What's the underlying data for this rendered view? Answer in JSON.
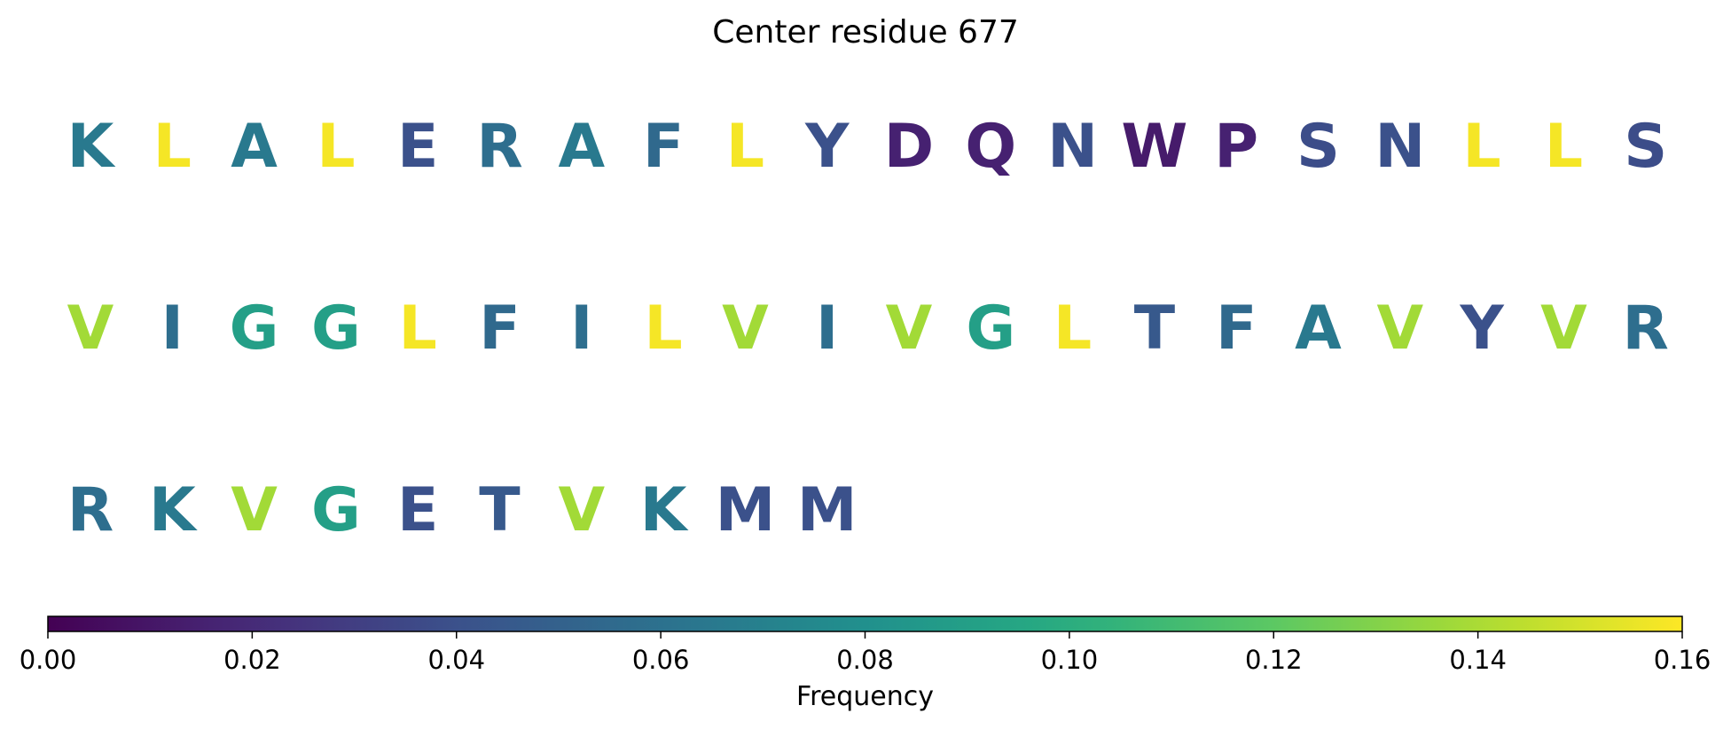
{
  "chart_data": {
    "type": "sequence_heatmap",
    "title": "Center residue 677",
    "sequence": [
      {
        "residue": "K",
        "frequency": 0.065
      },
      {
        "residue": "L",
        "frequency": 0.158
      },
      {
        "residue": "A",
        "frequency": 0.065
      },
      {
        "residue": "L",
        "frequency": 0.158
      },
      {
        "residue": "E",
        "frequency": 0.04
      },
      {
        "residue": "R",
        "frequency": 0.058
      },
      {
        "residue": "A",
        "frequency": 0.065
      },
      {
        "residue": "F",
        "frequency": 0.055
      },
      {
        "residue": "L",
        "frequency": 0.158
      },
      {
        "residue": "Y",
        "frequency": 0.04
      },
      {
        "residue": "D",
        "frequency": 0.015
      },
      {
        "residue": "Q",
        "frequency": 0.015
      },
      {
        "residue": "N",
        "frequency": 0.04
      },
      {
        "residue": "W",
        "frequency": 0.012
      },
      {
        "residue": "P",
        "frequency": 0.015
      },
      {
        "residue": "S",
        "frequency": 0.038
      },
      {
        "residue": "N",
        "frequency": 0.04
      },
      {
        "residue": "L",
        "frequency": 0.158
      },
      {
        "residue": "L",
        "frequency": 0.158
      },
      {
        "residue": "S",
        "frequency": 0.038
      },
      {
        "residue": "V",
        "frequency": 0.138
      },
      {
        "residue": "I",
        "frequency": 0.058
      },
      {
        "residue": "G",
        "frequency": 0.09
      },
      {
        "residue": "G",
        "frequency": 0.09
      },
      {
        "residue": "L",
        "frequency": 0.158
      },
      {
        "residue": "F",
        "frequency": 0.055
      },
      {
        "residue": "I",
        "frequency": 0.058
      },
      {
        "residue": "L",
        "frequency": 0.158
      },
      {
        "residue": "V",
        "frequency": 0.138
      },
      {
        "residue": "I",
        "frequency": 0.058
      },
      {
        "residue": "V",
        "frequency": 0.138
      },
      {
        "residue": "G",
        "frequency": 0.09
      },
      {
        "residue": "L",
        "frequency": 0.158
      },
      {
        "residue": "T",
        "frequency": 0.045
      },
      {
        "residue": "F",
        "frequency": 0.055
      },
      {
        "residue": "A",
        "frequency": 0.065
      },
      {
        "residue": "V",
        "frequency": 0.138
      },
      {
        "residue": "Y",
        "frequency": 0.04
      },
      {
        "residue": "V",
        "frequency": 0.138
      },
      {
        "residue": "R",
        "frequency": 0.058
      },
      {
        "residue": "R",
        "frequency": 0.058
      },
      {
        "residue": "K",
        "frequency": 0.065
      },
      {
        "residue": "V",
        "frequency": 0.138
      },
      {
        "residue": "G",
        "frequency": 0.09
      },
      {
        "residue": "E",
        "frequency": 0.04
      },
      {
        "residue": "T",
        "frequency": 0.045
      },
      {
        "residue": "V",
        "frequency": 0.138
      },
      {
        "residue": "K",
        "frequency": 0.065
      },
      {
        "residue": "M",
        "frequency": 0.04
      },
      {
        "residue": "M",
        "frequency": 0.04
      }
    ],
    "residues_per_row": 20,
    "colormap": "viridis",
    "colorbar": {
      "label": "Frequency",
      "range": [
        0.0,
        0.16
      ],
      "ticks": [
        0.0,
        0.02,
        0.04,
        0.06,
        0.08,
        0.1,
        0.12,
        0.14,
        0.16
      ],
      "tick_labels": [
        "0.00",
        "0.02",
        "0.04",
        "0.06",
        "0.08",
        "0.10",
        "0.12",
        "0.14",
        "0.16"
      ],
      "orientation": "horizontal",
      "placement": "bottom"
    }
  }
}
